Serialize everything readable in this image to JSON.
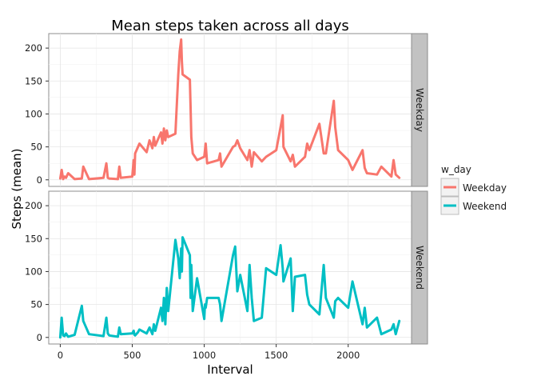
{
  "chart_data": {
    "type": "line",
    "title": "Mean steps taken across all days",
    "xlabel": "Interval",
    "ylabel": "Steps (mean)",
    "xlim": [
      -80,
      2440
    ],
    "ylim": [
      -10,
      222
    ],
    "x_ticks": [
      0,
      500,
      1000,
      1500,
      2000
    ],
    "y_ticks": [
      0,
      50,
      100,
      150,
      200
    ],
    "grid": true,
    "legend_title": "w_day",
    "legend_position": "right",
    "colors": {
      "Weekday": "#F8766D",
      "Weekend": "#00BFC4"
    },
    "facets": [
      {
        "name": "Weekday",
        "x": [
          0,
          10,
          20,
          30,
          40,
          55,
          100,
          150,
          160,
          200,
          300,
          320,
          330,
          340,
          400,
          410,
          420,
          500,
          510,
          515,
          520,
          540,
          550,
          600,
          620,
          640,
          650,
          660,
          700,
          710,
          720,
          730,
          740,
          750,
          800,
          820,
          830,
          840,
          845,
          850,
          900,
          905,
          910,
          920,
          950,
          1000,
          1005,
          1010,
          1020,
          1100,
          1110,
          1120,
          1200,
          1215,
          1230,
          1250,
          1300,
          1315,
          1330,
          1345,
          1400,
          1430,
          1500,
          1530,
          1545,
          1550,
          1600,
          1615,
          1630,
          1700,
          1715,
          1730,
          1800,
          1830,
          1845,
          1900,
          1910,
          1930,
          2000,
          2030,
          2100,
          2115,
          2130,
          2200,
          2230,
          2300,
          2315,
          2330,
          2355
        ],
        "values": [
          2,
          15,
          1,
          5,
          3,
          10,
          1,
          2,
          20,
          1,
          3,
          25,
          3,
          2,
          1,
          20,
          3,
          5,
          30,
          8,
          40,
          50,
          55,
          42,
          60,
          48,
          65,
          52,
          72,
          55,
          78,
          60,
          75,
          65,
          70,
          160,
          195,
          213,
          180,
          160,
          152,
          110,
          65,
          40,
          30,
          35,
          45,
          55,
          25,
          30,
          40,
          20,
          50,
          52,
          60,
          48,
          30,
          45,
          20,
          42,
          28,
          35,
          45,
          80,
          98,
          50,
          28,
          38,
          20,
          35,
          55,
          45,
          85,
          40,
          40,
          120,
          80,
          45,
          30,
          15,
          45,
          18,
          10,
          8,
          20,
          5,
          30,
          8,
          3
        ]
      },
      {
        "name": "Weekend",
        "x": [
          0,
          10,
          20,
          30,
          40,
          55,
          100,
          150,
          160,
          200,
          300,
          320,
          330,
          340,
          400,
          410,
          420,
          500,
          510,
          515,
          520,
          540,
          550,
          600,
          620,
          640,
          650,
          660,
          700,
          710,
          720,
          730,
          740,
          750,
          800,
          820,
          830,
          840,
          845,
          850,
          900,
          905,
          910,
          920,
          950,
          1000,
          1005,
          1010,
          1020,
          1100,
          1110,
          1120,
          1200,
          1215,
          1230,
          1250,
          1300,
          1315,
          1330,
          1345,
          1400,
          1430,
          1500,
          1530,
          1545,
          1550,
          1600,
          1615,
          1630,
          1700,
          1715,
          1730,
          1800,
          1830,
          1845,
          1900,
          1910,
          1930,
          2000,
          2030,
          2100,
          2115,
          2130,
          2200,
          2230,
          2300,
          2315,
          2330,
          2355
        ],
        "values": [
          0,
          30,
          3,
          2,
          6,
          1,
          4,
          48,
          25,
          5,
          2,
          30,
          6,
          3,
          1,
          15,
          5,
          6,
          10,
          4,
          3,
          8,
          12,
          6,
          15,
          5,
          20,
          10,
          45,
          25,
          60,
          20,
          75,
          40,
          148,
          120,
          90,
          135,
          100,
          152,
          125,
          60,
          110,
          40,
          90,
          28,
          50,
          45,
          60,
          60,
          50,
          25,
          125,
          138,
          70,
          95,
          40,
          110,
          60,
          25,
          30,
          105,
          95,
          140,
          105,
          85,
          120,
          40,
          92,
          95,
          65,
          50,
          35,
          110,
          60,
          30,
          55,
          60,
          45,
          85,
          20,
          45,
          15,
          30,
          5,
          12,
          20,
          5,
          25
        ]
      }
    ]
  }
}
